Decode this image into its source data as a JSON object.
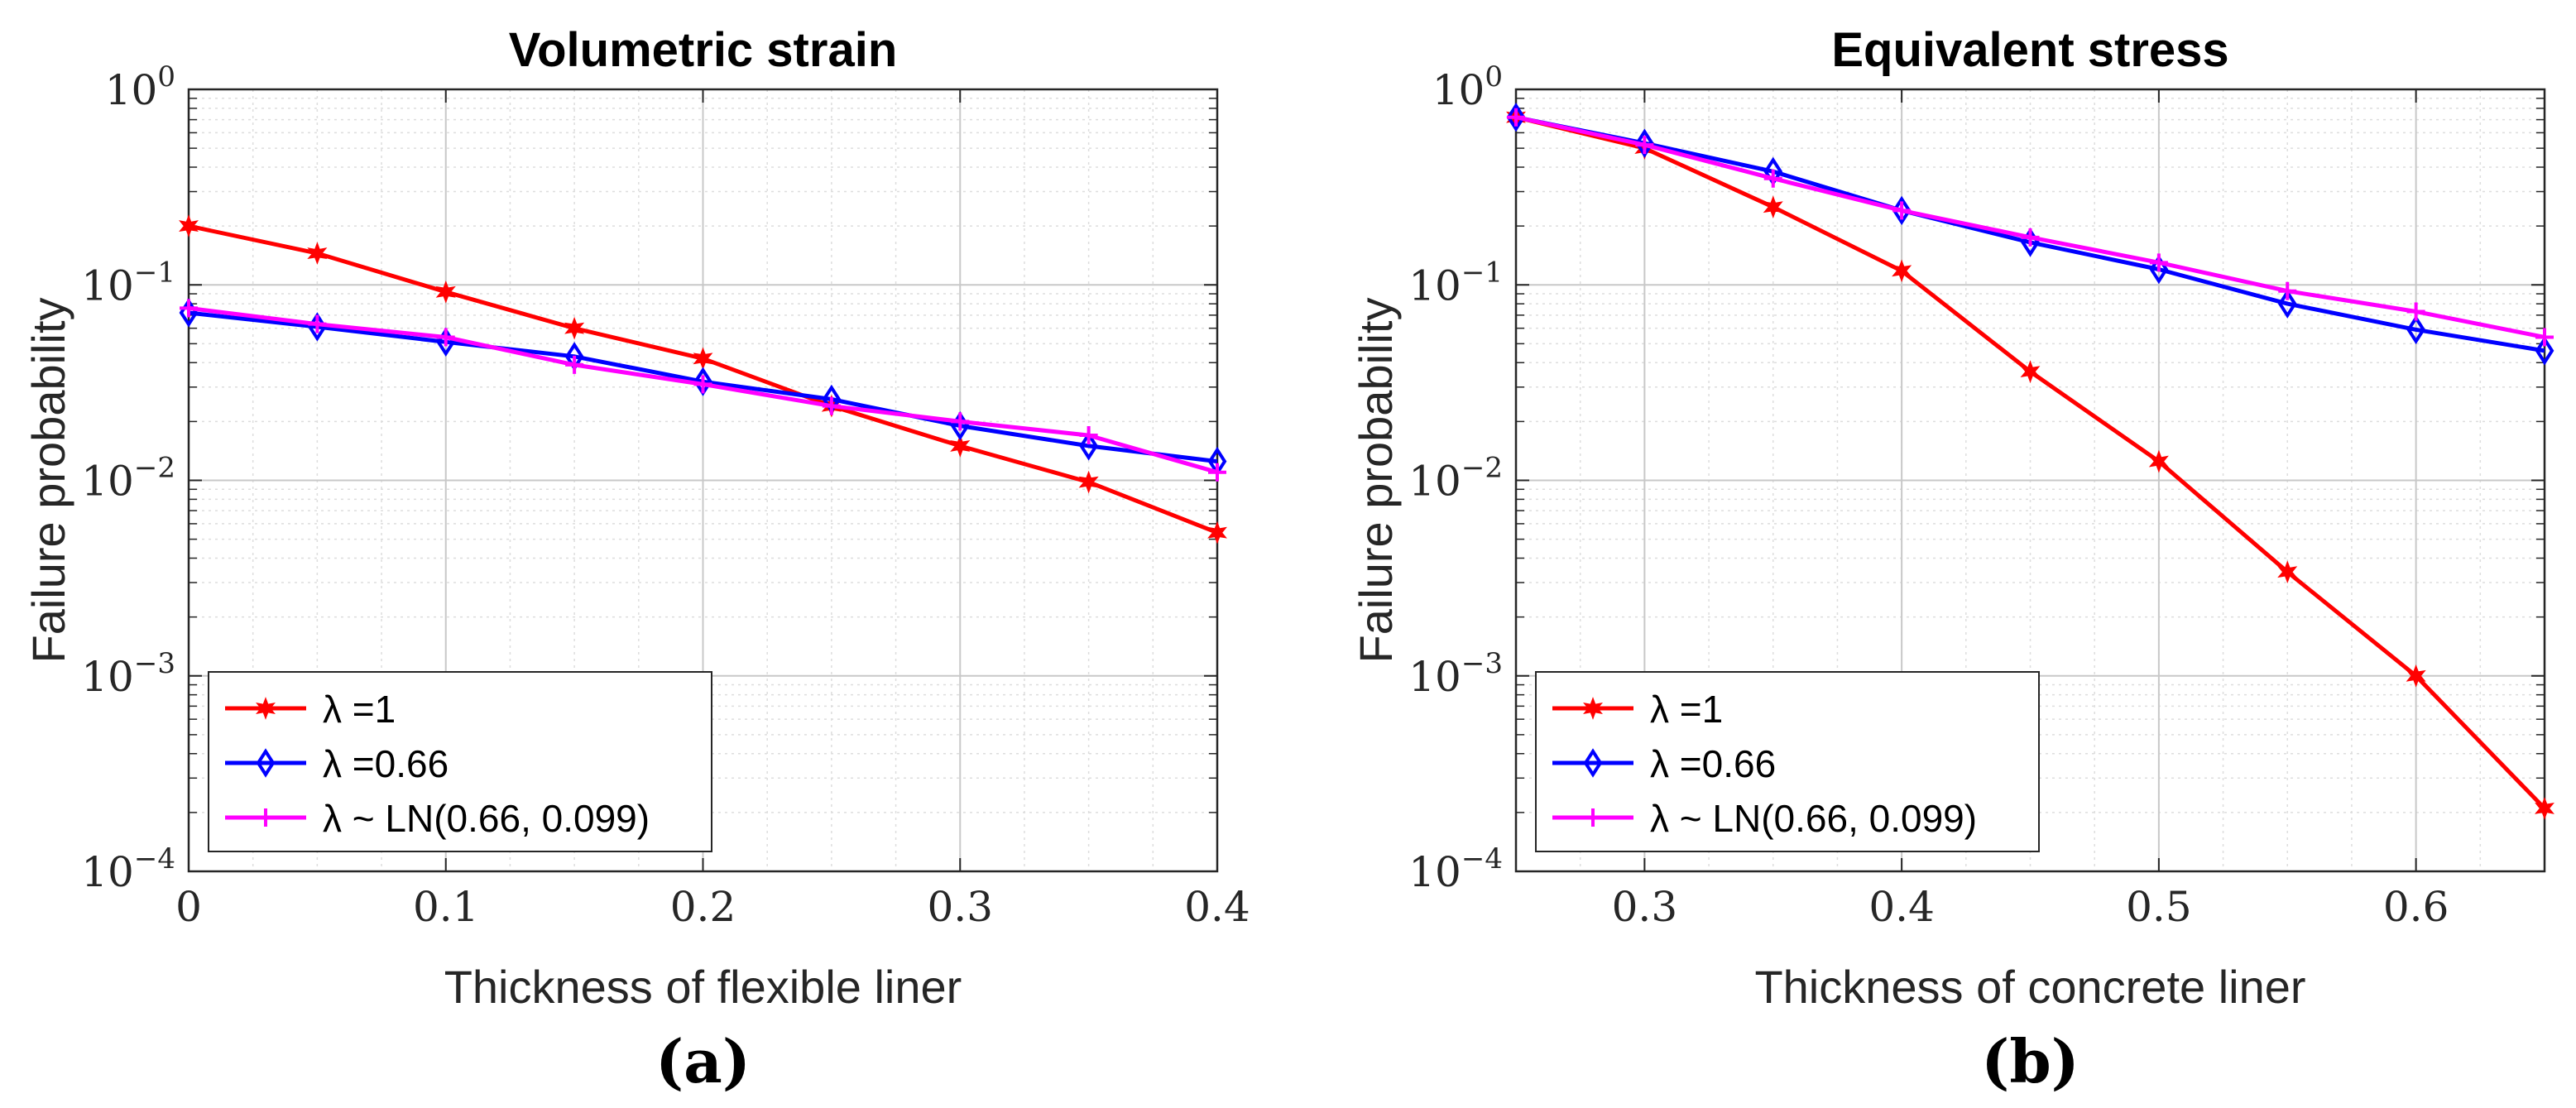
{
  "chart_data": [
    {
      "type": "line",
      "title": "Volumetric strain",
      "xlabel": "Thickness of flexible liner",
      "ylabel": "Failure probability",
      "yscale": "log",
      "xlim": [
        0,
        0.4
      ],
      "ylim": [
        0.0001,
        1
      ],
      "xticks": [
        "0",
        "0.1",
        "0.2",
        "0.3",
        "0.4"
      ],
      "yticks": [
        {
          "base": "10",
          "exp": "0"
        },
        {
          "base": "10",
          "exp": "−1"
        },
        {
          "base": "10",
          "exp": "−2"
        },
        {
          "base": "10",
          "exp": "−3"
        },
        {
          "base": "10",
          "exp": "−4"
        }
      ],
      "grid": true,
      "legend_position": "bottom-left",
      "caption": "(a)",
      "x": [
        0,
        0.05,
        0.1,
        0.15,
        0.2,
        0.25,
        0.3,
        0.35,
        0.4
      ],
      "series": [
        {
          "name": "λ =1",
          "color": "#ff0000",
          "marker": "star",
          "values": [
            0.2,
            0.145,
            0.092,
            0.06,
            0.042,
            0.024,
            0.015,
            0.0098,
            0.0054
          ]
        },
        {
          "name": "λ =0.66",
          "color": "#0000ff",
          "marker": "diamond",
          "values": [
            0.072,
            0.061,
            0.051,
            0.043,
            0.032,
            0.026,
            0.019,
            0.015,
            0.0125
          ]
        },
        {
          "name": "λ ~ LN(0.66, 0.099)",
          "color": "#ff00ff",
          "marker": "plus",
          "values": [
            0.076,
            0.063,
            0.054,
            0.039,
            0.031,
            0.024,
            0.02,
            0.017,
            0.011
          ]
        }
      ]
    },
    {
      "type": "line",
      "title": "Equivalent stress",
      "xlabel": "Thickness of concrete liner",
      "ylabel": "Failure probability",
      "yscale": "log",
      "xlim": [
        0.25,
        0.65
      ],
      "ylim": [
        0.0001,
        1
      ],
      "xticks": [
        "0.3",
        "0.4",
        "0.5",
        "0.6"
      ],
      "yticks": [
        {
          "base": "10",
          "exp": "0"
        },
        {
          "base": "10",
          "exp": "−1"
        },
        {
          "base": "10",
          "exp": "−2"
        },
        {
          "base": "10",
          "exp": "−3"
        },
        {
          "base": "10",
          "exp": "−4"
        }
      ],
      "grid": true,
      "legend_position": "bottom-left",
      "caption": "(b)",
      "x": [
        0.25,
        0.3,
        0.35,
        0.4,
        0.45,
        0.5,
        0.55,
        0.6,
        0.65
      ],
      "series": [
        {
          "name": "λ =1",
          "color": "#ff0000",
          "marker": "star",
          "values": [
            0.72,
            0.5,
            0.25,
            0.118,
            0.036,
            0.0125,
            0.0034,
            0.001,
            0.00021
          ]
        },
        {
          "name": "λ =0.66",
          "color": "#0000ff",
          "marker": "diamond",
          "values": [
            0.72,
            0.53,
            0.38,
            0.24,
            0.165,
            0.12,
            0.08,
            0.059,
            0.046
          ]
        },
        {
          "name": "λ ~ LN(0.66, 0.099)",
          "color": "#ff00ff",
          "marker": "plus",
          "values": [
            0.72,
            0.52,
            0.35,
            0.24,
            0.175,
            0.13,
            0.093,
            0.073,
            0.054
          ]
        }
      ]
    }
  ]
}
